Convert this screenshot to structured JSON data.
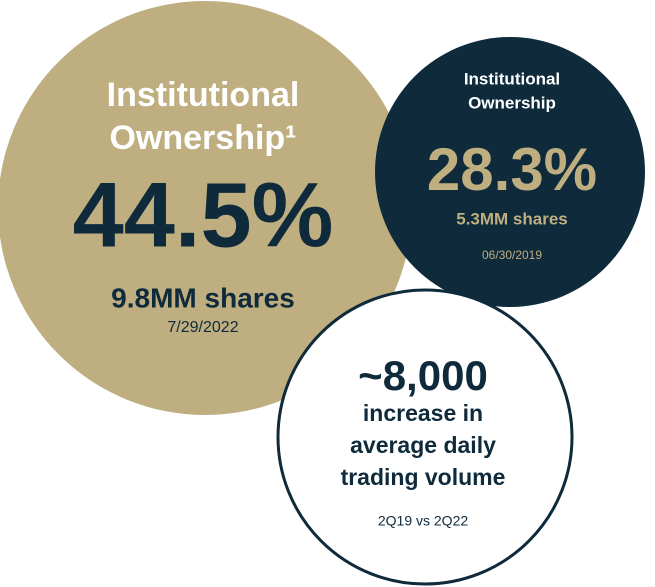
{
  "circles": [
    {
      "lines": [
        "Institutional",
        "Ownership¹"
      ],
      "value": "44.5%",
      "shares": "9.8MM shares",
      "date": "7/29/2022"
    },
    {
      "lines": [
        "Institutional",
        "Ownership"
      ],
      "value": "28.3%",
      "shares": "5.3MM shares",
      "date": "06/30/2019"
    },
    {
      "value": "~8,000",
      "lines": [
        "increase in",
        "average daily",
        "trading volume"
      ],
      "date": "2Q19 vs 2Q22"
    }
  ]
}
